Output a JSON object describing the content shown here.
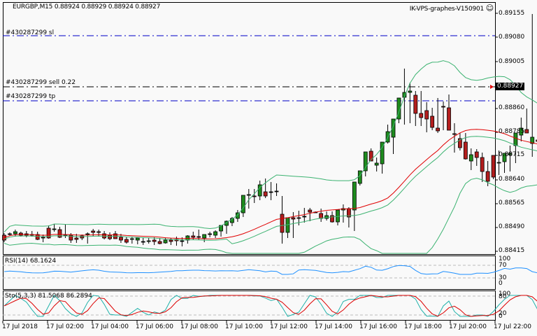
{
  "header": {
    "symbol_info": "EURGBP,M15  0.88924 0.88929 0.88924 0.88927",
    "server_label": "IK-VPS-graphes-V150901",
    "smiley_icon": "☺"
  },
  "current_price": "0.88927",
  "orders": [
    {
      "label": "#430287299 sl",
      "price": 0.8908,
      "color": "#0000c8"
    },
    {
      "label": "#430287299 sell 0.22",
      "price": 0.88927,
      "color": "#000000"
    },
    {
      "label": "#430287299 tp",
      "price": 0.88882,
      "color": "#0000c8"
    }
  ],
  "price_axis": [
    "0.89155",
    "0.89080",
    "0.89005",
    "0.88927",
    "0.88860",
    "0.88785",
    "0.88715",
    "0.88640",
    "0.88565",
    "0.88490",
    "0.88415"
  ],
  "rsi": {
    "title": "RSI(14) 68.1624",
    "levels": [
      "100",
      "70",
      "30",
      "0"
    ]
  },
  "stoch": {
    "title": "Sto(5,3,3) 81.5068 86.2894",
    "levels": [
      "100",
      "80",
      "20",
      "0"
    ]
  },
  "time_axis": [
    "17 Jul 2018",
    "17 Jul 02:00",
    "17 Jul 04:00",
    "17 Jul 06:00",
    "17 Jul 08:00",
    "17 Jul 10:00",
    "17 Jul 12:00",
    "17 Jul 14:00",
    "17 Jul 16:00",
    "17 Jul 18:00",
    "17 Jul 20:00",
    "17 Jul 22:00"
  ],
  "colors": {
    "bull": "#1e8c1e",
    "bear": "#b41e1e",
    "bands": "#3cb371",
    "ma": "#e00000",
    "rsi": "#1e90ff",
    "sto_main": "#20b2aa",
    "sto_signal": "#dc0000"
  },
  "chart_data": {
    "type": "candlestick",
    "title": "EURGBP,M15",
    "xlabel": "",
    "ylabel": "",
    "ylim": [
      0.88405,
      0.8917
    ],
    "x_ticks": [
      "17 Jul 2018",
      "17 Jul 02:00",
      "17 Jul 04:00",
      "17 Jul 06:00",
      "17 Jul 08:00",
      "17 Jul 10:00",
      "17 Jul 12:00",
      "17 Jul 14:00",
      "17 Jul 16:00",
      "17 Jul 18:00",
      "17 Jul 20:00",
      "17 Jul 22:00"
    ],
    "candles_y": [
      [
        336,
        333,
        346,
        343
      ],
      [
        334,
        332,
        337,
        334
      ],
      [
        334,
        328,
        338,
        331
      ],
      [
        333,
        331,
        338,
        336
      ],
      [
        334,
        330,
        339,
        336
      ],
      [
        335,
        330,
        338,
        336
      ],
      [
        335,
        331,
        343,
        342
      ],
      [
        339,
        335,
        346,
        340
      ],
      [
        326,
        322,
        341,
        340
      ],
      [
        328,
        320,
        331,
        327
      ],
      [
        328,
        324,
        340,
        339
      ],
      [
        336,
        320,
        340,
        337
      ],
      [
        336,
        333,
        347,
        343
      ],
      [
        340,
        334,
        347,
        342
      ],
      [
        337,
        335,
        343,
        340
      ],
      [
        335,
        332,
        348,
        334
      ],
      [
        330,
        327,
        337,
        332
      ],
      [
        331,
        328,
        338,
        332
      ],
      [
        334,
        330,
        342,
        340
      ],
      [
        336,
        332,
        343,
        341
      ],
      [
        334,
        330,
        341,
        341
      ],
      [
        339,
        334,
        347,
        343
      ],
      [
        342,
        338,
        348,
        346
      ],
      [
        342,
        338,
        348,
        341
      ],
      [
        343,
        339,
        349,
        340
      ],
      [
        345,
        339,
        350,
        345
      ],
      [
        345,
        340,
        348,
        344
      ],
      [
        343,
        339,
        350,
        345
      ],
      [
        345,
        340,
        349,
        348
      ],
      [
        347,
        340,
        348,
        343
      ],
      [
        343,
        340,
        350,
        345
      ],
      [
        342,
        338,
        351,
        344
      ],
      [
        344,
        339,
        352,
        344
      ],
      [
        343,
        336,
        348,
        337
      ],
      [
        337,
        331,
        343,
        339
      ],
      [
        338,
        328,
        343,
        339
      ],
      [
        340,
        336,
        346,
        335
      ],
      [
        334,
        331,
        339,
        334
      ],
      [
        336,
        329,
        340,
        331
      ],
      [
        330,
        325,
        338,
        322
      ],
      [
        322,
        315,
        334,
        316
      ],
      [
        318,
        310,
        323,
        312
      ],
      [
        312,
        300,
        317,
        304
      ],
      [
        304,
        284,
        310,
        279
      ],
      [
        279,
        270,
        298,
        278
      ],
      [
        280,
        270,
        290,
        281
      ],
      [
        280,
        258,
        286,
        264
      ],
      [
        274,
        255,
        283,
        280
      ],
      [
        274,
        260,
        286,
        274
      ],
      [
        273,
        262,
        280,
        273
      ],
      [
        306,
        280,
        348,
        332
      ],
      [
        332,
        312,
        340,
        311
      ],
      [
        311,
        303,
        340,
        313
      ],
      [
        311,
        301,
        322,
        312
      ],
      [
        309,
        297,
        318,
        309
      ],
      [
        300,
        297,
        316,
        303
      ],
      [
        303,
        302,
        303,
        303
      ],
      [
        305,
        298,
        317,
        312
      ],
      [
        312,
        302,
        315,
        308
      ],
      [
        308,
        302,
        318,
        317
      ],
      [
        317,
        300,
        322,
        300
      ],
      [
        300,
        292,
        318,
        298
      ],
      [
        298,
        296,
        325,
        310
      ],
      [
        300,
        280,
        330,
        260
      ],
      [
        262,
        244,
        265,
        244
      ],
      [
        244,
        219,
        252,
        217
      ],
      [
        216,
        212,
        230,
        230
      ],
      [
        236,
        225,
        245,
        233
      ],
      [
        234,
        212,
        248,
        203
      ],
      [
        203,
        178,
        205,
        188
      ],
      [
        196,
        180,
        220,
        170
      ],
      [
        170,
        140,
        176,
        140
      ],
      [
        139,
        98,
        178,
        132
      ],
      [
        132,
        118,
        176,
        130
      ],
      [
        136,
        130,
        180,
        162
      ],
      [
        162,
        130,
        180,
        168
      ],
      [
        158,
        146,
        189,
        170
      ],
      [
        166,
        154,
        186,
        182
      ],
      [
        183,
        140,
        190,
        187
      ],
      [
        152,
        145,
        186,
        153
      ],
      [
        154,
        135,
        166,
        186
      ],
      [
        191,
        176,
        218,
        192
      ],
      [
        198,
        190,
        215,
        211
      ],
      [
        203,
        190,
        228,
        227
      ],
      [
        230,
        212,
        243,
        221
      ],
      [
        217,
        213,
        237,
        225
      ],
      [
        225,
        218,
        260,
        245
      ],
      [
        245,
        230,
        266,
        259
      ],
      [
        222,
        230,
        256,
        253
      ],
      [
        233,
        215,
        250,
        232
      ],
      [
        231,
        220,
        247,
        219
      ],
      [
        221,
        208,
        245,
        219
      ],
      [
        208,
        200,
        233,
        190
      ],
      [
        193,
        168,
        202,
        183
      ],
      [
        185,
        155,
        190,
        190
      ],
      [
        205,
        20,
        224,
        196
      ],
      [
        200,
        190,
        224,
        202
      ],
      [
        199,
        179,
        211,
        195
      ],
      [
        194,
        160,
        198,
        163
      ],
      [
        165,
        148,
        180,
        161
      ],
      [
        165,
        142,
        175,
        161
      ],
      [
        160,
        143,
        163,
        149
      ],
      [
        148,
        137,
        160,
        138
      ],
      [
        139,
        128,
        147,
        131
      ],
      [
        131,
        115,
        135,
        123
      ],
      [
        123,
        117,
        125,
        124
      ]
    ]
  }
}
